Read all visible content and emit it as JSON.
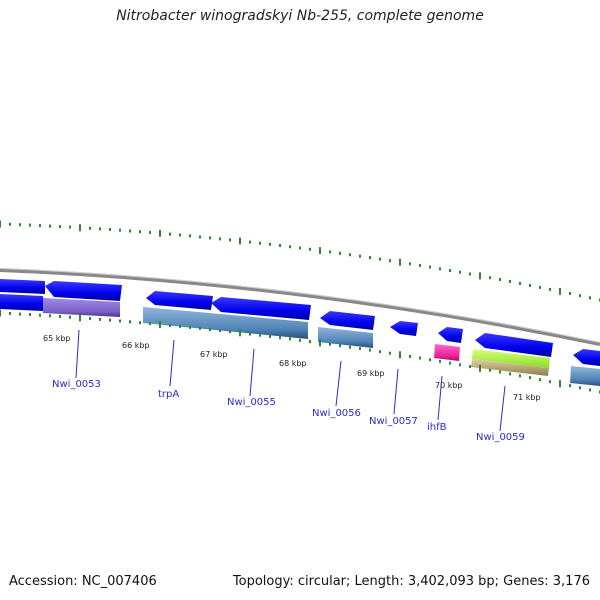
{
  "title": "Nitrobacter winogradskyi Nb-255, complete genome",
  "footer": {
    "accession": "Accession: NC_007406",
    "summary": "Topology: circular; Length: 3,402,093 bp; Genes: 3,176"
  },
  "ticks": [
    "65 kbp",
    "66 kbp",
    "67 kbp",
    "68 kbp",
    "69 kbp",
    "70 kbp",
    "71 kbp"
  ],
  "genes": [
    "Nwi_0053",
    "trpA",
    "Nwi_0055",
    "Nwi_0056",
    "Nwi_0057",
    "ihfB",
    "Nwi_0059"
  ],
  "colors": {
    "gene_arrow": "#0000ee",
    "cds_steel": "#4f83b5",
    "cds_purple": "#7b61c9",
    "cds_magenta": "#ee2299",
    "cds_lime": "#99ee33",
    "cds_tan": "#c4b07a",
    "backbone": "#999999",
    "tick": "#2b8a2b",
    "label": "#2a2ad0"
  }
}
